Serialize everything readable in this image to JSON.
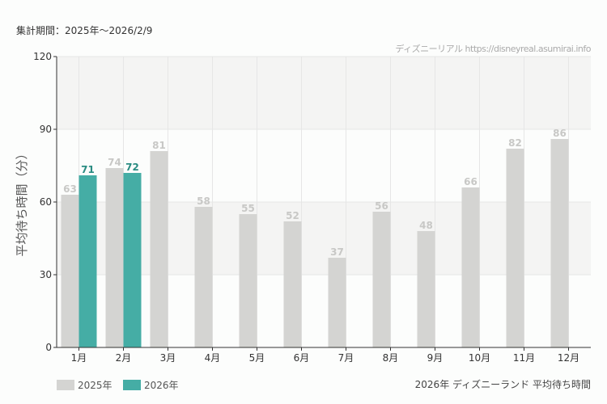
{
  "header": {
    "period": "集計期間：2025年～2026/2/9",
    "credit": "ディズニーリアル https://disneyreal.asumirai.info"
  },
  "footer": {
    "caption": "2026年 ディズニーランド 平均待ち時間"
  },
  "colors": {
    "s2025": "#d4d4d2",
    "s2026": "#45ada5",
    "label2025": "#c8c8c6",
    "label2026": "#2a8c82"
  },
  "chart_data": {
    "type": "bar",
    "ylabel": "平均待ち時間（分）",
    "ylim": [
      0,
      120
    ],
    "yticks": [
      "0",
      "30",
      "60",
      "90",
      "120"
    ],
    "categories": [
      "1月",
      "2月",
      "3月",
      "4月",
      "5月",
      "6月",
      "7月",
      "8月",
      "9月",
      "10月",
      "11月",
      "12月"
    ],
    "series": [
      {
        "name": "2025年",
        "values": [
          63,
          74,
          81,
          58,
          55,
          52,
          37,
          56,
          48,
          66,
          82,
          86
        ]
      },
      {
        "name": "2026年",
        "values": [
          71,
          72,
          null,
          null,
          null,
          null,
          null,
          null,
          null,
          null,
          null,
          null
        ]
      }
    ],
    "legend": "bottom-left",
    "grid": true
  }
}
